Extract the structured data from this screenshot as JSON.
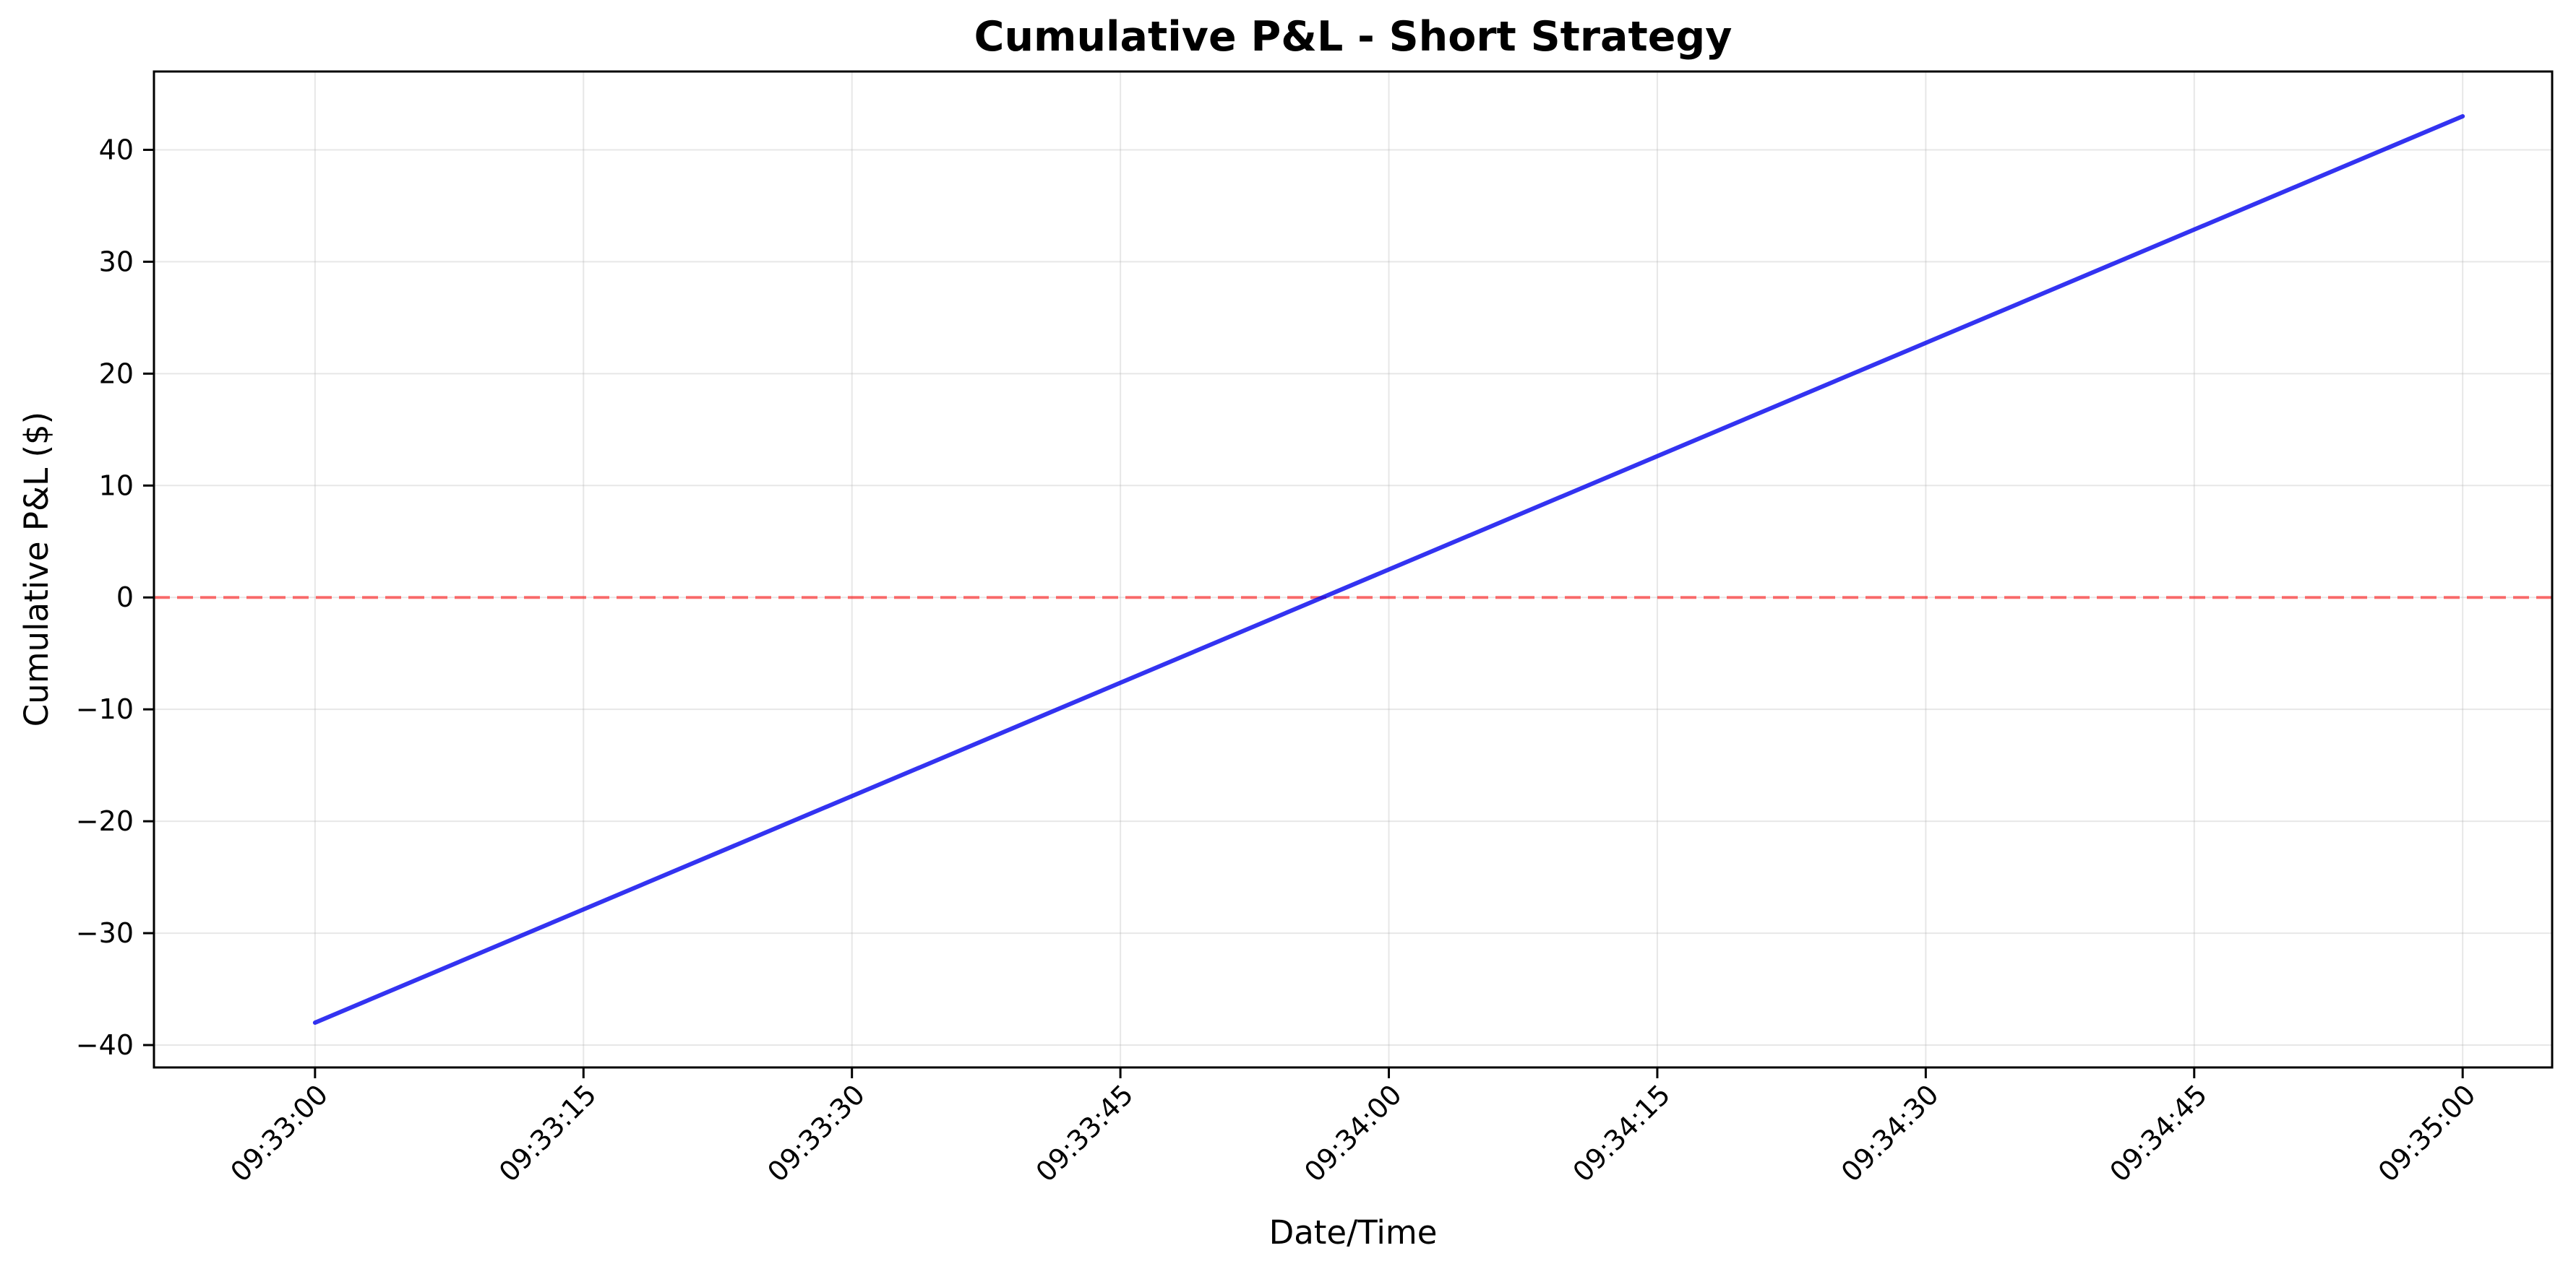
{
  "chart_data": {
    "type": "line",
    "title": "Cumulative P&L - Short Strategy",
    "xlabel": "Date/Time",
    "ylabel": "Cumulative P&L ($)",
    "xlim": [
      "09:32:51",
      "09:35:05"
    ],
    "ylim": [
      -42,
      47
    ],
    "x_ticks": [
      "09:33:00",
      "09:33:15",
      "09:33:30",
      "09:33:45",
      "09:34:00",
      "09:34:15",
      "09:34:30",
      "09:34:45",
      "09:35:00"
    ],
    "y_ticks": [
      -40,
      -30,
      -20,
      -10,
      0,
      10,
      20,
      30,
      40
    ],
    "grid": true,
    "series": [
      {
        "color": "#0000ee",
        "points": [
          {
            "x": "09:33:00",
            "y": -38
          },
          {
            "x": "09:35:00",
            "y": 43
          }
        ]
      }
    ],
    "reference_lines": [
      {
        "axis": "y",
        "value": 0,
        "style": "dashed",
        "color": "#ff0000"
      }
    ]
  }
}
